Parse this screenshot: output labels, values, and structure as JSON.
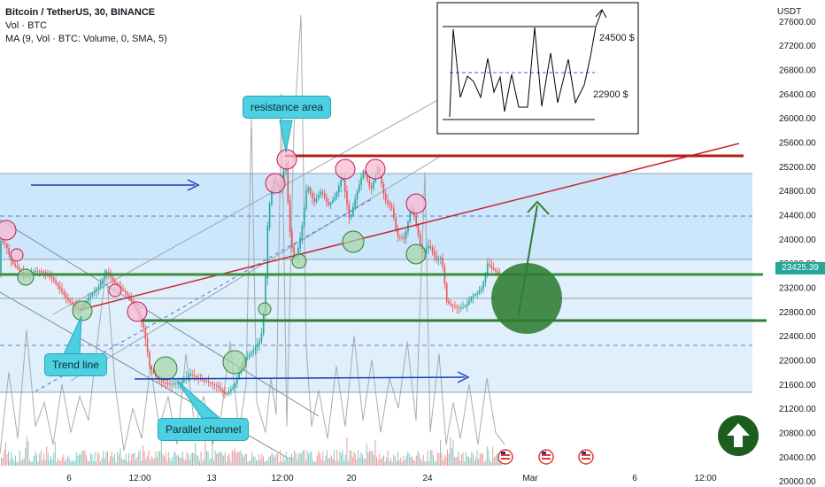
{
  "header": {
    "symbol": "Bitcoin / TetherUS, 30, BINANCE",
    "vol": "Vol · BTC",
    "ma": "MA (9, Vol · BTC: Volume, 0, SMA, 5)"
  },
  "axis": {
    "currency": "USDT",
    "current_price": "23425.39",
    "x_labels": [
      "6",
      "12:00",
      "13",
      "12:00",
      "20",
      "24",
      "Mar",
      "6",
      "12:00"
    ]
  },
  "chart_data": {
    "type": "line",
    "y_axis_ticks": [
      20000,
      20400,
      20800,
      21200,
      21600,
      22000,
      22400,
      22800,
      23200,
      23600,
      24000,
      24400,
      24800,
      25200,
      25600,
      26000,
      26400,
      26800,
      27200,
      27600
    ],
    "ylim": [
      19900,
      27950
    ],
    "x_tick_labels": [
      "6",
      "12:00",
      "13",
      "12:00",
      "20",
      "24",
      "Mar",
      "6",
      "12:00"
    ],
    "price_path": [
      [
        0,
        24000
      ],
      [
        8,
        23900
      ],
      [
        14,
        23620
      ],
      [
        22,
        23500
      ],
      [
        30,
        23390
      ],
      [
        40,
        23470
      ],
      [
        50,
        23460
      ],
      [
        60,
        23350
      ],
      [
        70,
        23150
      ],
      [
        80,
        22950
      ],
      [
        92,
        22820
      ],
      [
        102,
        23050
      ],
      [
        112,
        23200
      ],
      [
        122,
        23460
      ],
      [
        132,
        23250
      ],
      [
        142,
        23130
      ],
      [
        150,
        22960
      ],
      [
        158,
        22750
      ],
      [
        164,
        22500
      ],
      [
        170,
        21900
      ],
      [
        178,
        21700
      ],
      [
        186,
        21620
      ],
      [
        196,
        21600
      ],
      [
        206,
        21630
      ],
      [
        216,
        21770
      ],
      [
        226,
        21690
      ],
      [
        236,
        21630
      ],
      [
        246,
        21570
      ],
      [
        256,
        21420
      ],
      [
        266,
        21580
      ],
      [
        276,
        21980
      ],
      [
        286,
        22130
      ],
      [
        296,
        22350
      ],
      [
        300,
        22950
      ],
      [
        304,
        24400
      ],
      [
        310,
        25000
      ],
      [
        318,
        24800
      ],
      [
        324,
        25300
      ],
      [
        328,
        24200
      ],
      [
        332,
        23750
      ],
      [
        336,
        23700
      ],
      [
        342,
        24150
      ],
      [
        348,
        24900
      ],
      [
        356,
        24600
      ],
      [
        364,
        24800
      ],
      [
        372,
        24550
      ],
      [
        380,
        24700
      ],
      [
        388,
        25050
      ],
      [
        396,
        24300
      ],
      [
        404,
        24750
      ],
      [
        412,
        25150
      ],
      [
        420,
        24800
      ],
      [
        428,
        25200
      ],
      [
        436,
        24650
      ],
      [
        444,
        24500
      ],
      [
        450,
        24050
      ],
      [
        458,
        24000
      ],
      [
        466,
        24550
      ],
      [
        472,
        24200
      ],
      [
        478,
        23750
      ],
      [
        486,
        23900
      ],
      [
        494,
        23650
      ],
      [
        500,
        23700
      ],
      [
        506,
        22950
      ],
      [
        512,
        22900
      ],
      [
        520,
        22850
      ],
      [
        528,
        22900
      ],
      [
        534,
        23050
      ],
      [
        540,
        23100
      ],
      [
        546,
        23200
      ],
      [
        552,
        23600
      ],
      [
        558,
        23500
      ],
      [
        564,
        23430
      ]
    ],
    "volume_ma_path": [
      [
        0,
        20450
      ],
      [
        10,
        21800
      ],
      [
        20,
        20700
      ],
      [
        30,
        22500
      ],
      [
        40,
        20900
      ],
      [
        50,
        21300
      ],
      [
        60,
        20600
      ],
      [
        70,
        21600
      ],
      [
        80,
        20800
      ],
      [
        90,
        21400
      ],
      [
        100,
        21000
      ],
      [
        110,
        22300
      ],
      [
        120,
        23500
      ],
      [
        130,
        21600
      ],
      [
        140,
        20500
      ],
      [
        150,
        21200
      ],
      [
        160,
        20700
      ],
      [
        170,
        21900
      ],
      [
        180,
        20900
      ],
      [
        190,
        21400
      ],
      [
        200,
        20600
      ],
      [
        210,
        22100
      ],
      [
        220,
        20900
      ],
      [
        230,
        21400
      ],
      [
        240,
        20600
      ],
      [
        250,
        21100
      ],
      [
        260,
        22300
      ],
      [
        270,
        20800
      ],
      [
        278,
        21600
      ],
      [
        284,
        26000
      ],
      [
        290,
        21300
      ],
      [
        300,
        20800
      ],
      [
        306,
        21700
      ],
      [
        312,
        21100
      ],
      [
        318,
        26400
      ],
      [
        324,
        20900
      ],
      [
        332,
        25800
      ],
      [
        340,
        27700
      ],
      [
        346,
        22200
      ],
      [
        352,
        20900
      ],
      [
        360,
        21500
      ],
      [
        370,
        20700
      ],
      [
        380,
        21900
      ],
      [
        390,
        20900
      ],
      [
        400,
        22400
      ],
      [
        410,
        21000
      ],
      [
        420,
        22000
      ],
      [
        430,
        20800
      ],
      [
        440,
        21700
      ],
      [
        450,
        21200
      ],
      [
        460,
        22300
      ],
      [
        470,
        21000
      ],
      [
        480,
        25100
      ],
      [
        486,
        20800
      ],
      [
        496,
        22100
      ],
      [
        504,
        20600
      ],
      [
        512,
        21300
      ],
      [
        520,
        20700
      ],
      [
        530,
        21600
      ],
      [
        540,
        20600
      ],
      [
        550,
        21700
      ],
      [
        560,
        20800
      ],
      [
        570,
        20600
      ]
    ],
    "inset": {
      "levels": [
        24500,
        22900
      ],
      "level_labels": [
        "24500 $",
        "22900 $"
      ]
    },
    "annotations": [
      "resistance area",
      "Trend line",
      "Parallel channel"
    ]
  },
  "annotations": {
    "resistance": "resistance area",
    "trendline": "Trend line",
    "channel": "Parallel channel",
    "inset_top": "24500 $",
    "inset_bottom": "22900 $"
  },
  "colors": {
    "band": "#bbdefb",
    "candle_up": "#26a69a",
    "candle_down": "#ef5350",
    "resistance_line": "#c62828",
    "support_line": "#388e3c",
    "callout": "#4dd0e1",
    "arrow_blue": "#1a3fb5",
    "circle_green": "#2e7d32"
  }
}
